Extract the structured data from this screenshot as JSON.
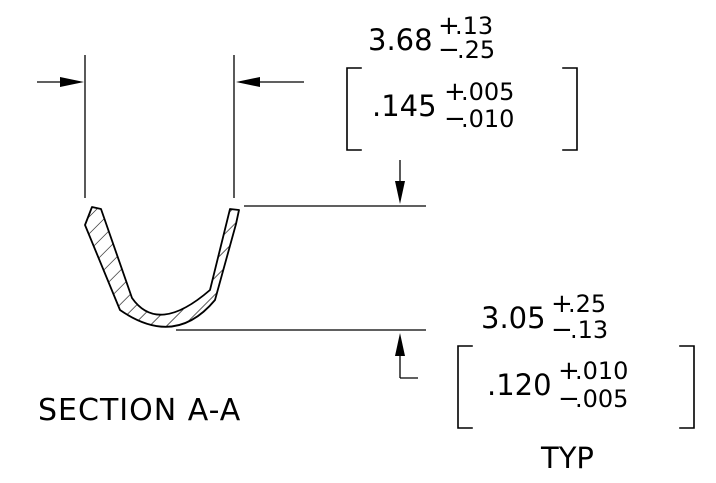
{
  "drawing": {
    "caption": "SECTION A-A",
    "width_dim": {
      "metric": {
        "nominal": "3.68",
        "plus": ".13",
        "minus": ".25"
      },
      "imperial": {
        "nominal": ".145",
        "plus": ".005",
        "minus": ".010"
      }
    },
    "depth_dim": {
      "metric": {
        "nominal": "3.05",
        "plus": ".25",
        "minus": ".13"
      },
      "imperial": {
        "nominal": ".120",
        "plus": ".010",
        "minus": ".005"
      },
      "note": "TYP"
    },
    "symbols": {
      "plus": "+",
      "minus": "−"
    }
  }
}
